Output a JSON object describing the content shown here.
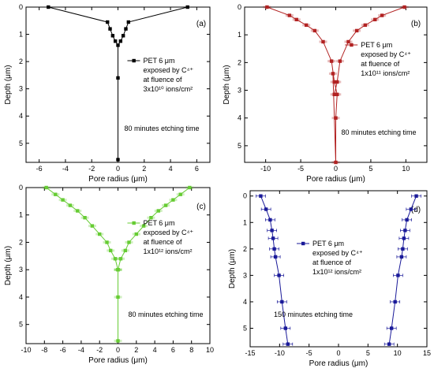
{
  "colors": {
    "a": "#000000",
    "b": "#b22222",
    "c": "#66cc33",
    "d": "#1a1a99"
  },
  "chart_data": [
    {
      "panel": "(a)",
      "type": "line",
      "xlabel": "Pore radius (μm)",
      "ylabel": "Depth (μm)",
      "xlim": [
        -7,
        7
      ],
      "ylim": [
        0,
        5.7
      ],
      "y_reversed": true,
      "x_axis_position": "top",
      "xticks": [
        "-6",
        "-4",
        "-2",
        "0",
        "2",
        "4",
        "6"
      ],
      "yticks": [
        "0",
        "1",
        "2",
        "3",
        "4",
        "5"
      ],
      "legend": [
        "PET 6 μm",
        "exposed by C⁴⁺",
        "at fluence of",
        "3x10¹⁰ ions/cm²"
      ],
      "legend_placement": "right",
      "annotation": "80 minutes etching time",
      "series": [
        {
          "x": [
            -5.3,
            -0.8,
            -0.6,
            -0.4,
            -0.2,
            0,
            0,
            0,
            0.2,
            0.4,
            0.6,
            0.8,
            5.3
          ],
          "y": [
            0,
            0.55,
            0.8,
            1.05,
            1.25,
            1.4,
            2.6,
            5.6,
            1.25,
            1.05,
            0.8,
            0.55,
            0
          ]
        }
      ]
    },
    {
      "panel": "(b)",
      "type": "line",
      "xlabel": "Pore radius (μm)",
      "ylabel": "Depth (μm)",
      "xlim": [
        -13,
        13
      ],
      "ylim": [
        0,
        5.6
      ],
      "y_reversed": true,
      "x_axis_position": "top",
      "xticks": [
        "-10",
        "-5",
        "0",
        "5",
        "10"
      ],
      "yticks": [
        "0",
        "1",
        "2",
        "3",
        "4",
        "5"
      ],
      "legend": [
        "PET 6 μm",
        "exposed by C⁴⁺",
        "at fluence of",
        "1x10¹¹ ions/cm²"
      ],
      "legend_placement": "right",
      "annotation": "80 minutes etching time",
      "series": [
        {
          "x": [
            -9.8,
            -6.6,
            -5.6,
            -4.2,
            -3.0,
            -1.8,
            -0.6,
            -0.2,
            0.2,
            0,
            0,
            -0.4
          ],
          "y": [
            0,
            0.3,
            0.45,
            0.65,
            0.85,
            1.25,
            1.95,
            2.7,
            3.15,
            4.0,
            5.6,
            2.4
          ]
        },
        {
          "x": [
            9.8,
            6.6,
            5.6,
            4.2,
            3.0,
            1.8,
            0.6,
            0.2,
            -0.2
          ],
          "y": [
            0,
            0.3,
            0.45,
            0.65,
            0.85,
            1.25,
            1.95,
            2.7,
            3.15
          ]
        }
      ]
    },
    {
      "panel": "(c)",
      "type": "line",
      "xlabel": "Pore radius (μm)",
      "ylabel": "Depth (μm)",
      "xlim": [
        -10,
        10
      ],
      "ylim": [
        0,
        5.7
      ],
      "y_reversed": true,
      "x_axis_position": "top",
      "xticks": [
        "-10",
        "-8",
        "-6",
        "-4",
        "-2",
        "0",
        "2",
        "4",
        "6",
        "8",
        "10"
      ],
      "yticks": [
        "0",
        "1",
        "2",
        "3",
        "4",
        "5"
      ],
      "legend": [
        "PET 6 μm",
        "exposed by C⁴⁺",
        "at fluence of",
        "1x10¹² ions/cm²"
      ],
      "legend_placement": "right",
      "annotation": "80 minutes etching time",
      "series": [
        {
          "x": [
            -7.8,
            -6.8,
            -6.0,
            -5.2,
            -4.4,
            -3.6,
            -2.8,
            -2.0,
            -1.2,
            -0.8,
            -0.3,
            0,
            0,
            0,
            0
          ],
          "y": [
            0,
            0.25,
            0.45,
            0.65,
            0.85,
            1.1,
            1.4,
            1.7,
            2.0,
            2.3,
            2.6,
            3.0,
            4.0,
            5.6,
            3.0
          ]
        },
        {
          "x": [
            7.8,
            6.8,
            6.0,
            5.2,
            4.4,
            3.6,
            2.8,
            2.0,
            1.2,
            0.8,
            0.3,
            0
          ],
          "y": [
            0,
            0.25,
            0.45,
            0.65,
            0.85,
            1.1,
            1.4,
            1.7,
            2.0,
            2.3,
            2.6,
            3.0
          ]
        }
      ]
    },
    {
      "panel": "(d)",
      "type": "line",
      "xlabel": "Pore radius (μm)",
      "ylabel": "Depth (μm)",
      "xlim": [
        -15,
        15
      ],
      "ylim": [
        -0.2,
        5.7
      ],
      "y_reversed": true,
      "x_axis_position": "top",
      "xticks": [
        "-15",
        "-10",
        "-5",
        "0",
        "5",
        "10",
        "15"
      ],
      "yticks": [
        "0",
        "1",
        "2",
        "3",
        "4",
        "5"
      ],
      "legend": [
        "PET 6 μm",
        "exposed by C⁴⁺",
        "at fluence of",
        "1x10¹² ions/cm²"
      ],
      "legend_placement": "center",
      "annotation": "150 minutes etching time",
      "error_bars": true,
      "series": [
        {
          "x": [
            -13.2,
            -12.3,
            -11.6,
            -11.3,
            -11.1,
            -10.9,
            -10.7,
            -10.1,
            -9.6,
            -9.0,
            -8.6
          ],
          "y": [
            0,
            0.5,
            0.9,
            1.3,
            1.6,
            2.0,
            2.3,
            3.0,
            4.0,
            5.0,
            5.6
          ]
        },
        {
          "x": [
            13.2,
            12.3,
            11.6,
            11.3,
            11.1,
            10.9,
            10.7,
            10.1,
            9.6,
            9.0,
            8.6
          ],
          "y": [
            0,
            0.5,
            0.9,
            1.3,
            1.6,
            2.0,
            2.3,
            3.0,
            4.0,
            5.0,
            5.6
          ]
        }
      ]
    }
  ]
}
